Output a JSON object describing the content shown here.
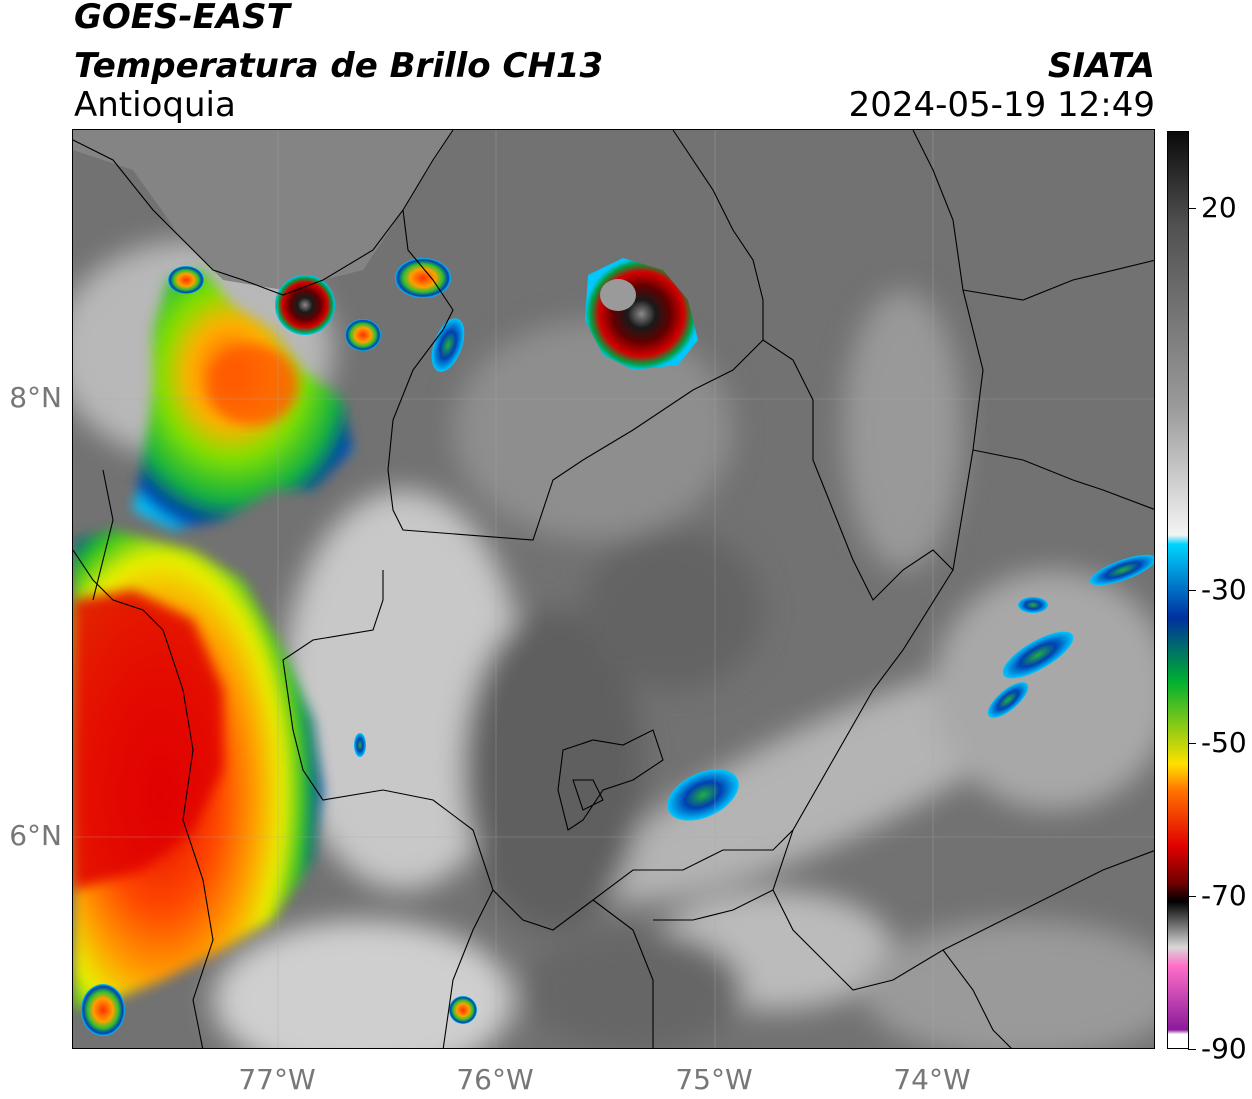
{
  "header": {
    "satellite": "GOES-EAST",
    "product": "Temperatura de Brillo CH13",
    "region": "Antioquia",
    "organization": "SIATA",
    "datetime": "2024-05-19 12:49"
  },
  "map": {
    "lat_labels": [
      {
        "text": "8°N",
        "value": 8
      },
      {
        "text": "6°N",
        "value": 6
      }
    ],
    "lon_labels": [
      {
        "text": "77°W",
        "value": -77
      },
      {
        "text": "76°W",
        "value": -76
      },
      {
        "text": "75°W",
        "value": -75
      },
      {
        "text": "74°W",
        "value": -74
      }
    ],
    "extent": {
      "lon_min": -77.94,
      "lon_max": -72.98,
      "lat_min": 5.08,
      "lat_max": 9.29
    }
  },
  "colorbar": {
    "ticks": [
      {
        "label": "20",
        "value": 20
      },
      {
        "label": "-30",
        "value": -30
      },
      {
        "label": "-50",
        "value": -50
      },
      {
        "label": "-70",
        "value": -70
      },
      {
        "label": "-90",
        "value": -90
      }
    ],
    "range": [
      -90,
      30
    ],
    "colors": {
      "warm_gray_top": "#0a0a0a",
      "gray_mid": "#9a9a9a",
      "near_white": "#f4f4f4",
      "cyan": "#00d4ff",
      "blue": "#0030a0",
      "green": "#00b030",
      "yellow": "#ffe000",
      "orange": "#ff7000",
      "red": "#e00000",
      "dark_red": "#700000",
      "black": "#000000",
      "light_gray": "#d8d8d8",
      "pink": "#ff70c8",
      "purple": "#8a1a9a"
    }
  }
}
